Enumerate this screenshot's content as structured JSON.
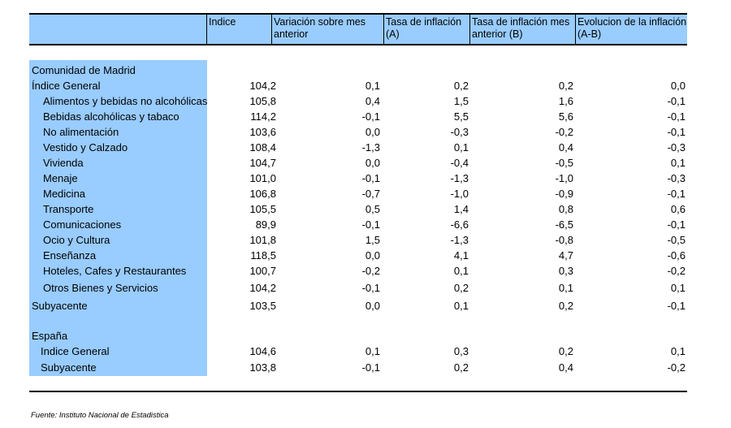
{
  "headers": [
    "Indice",
    "Variación sobre mes anterior",
    "Tasa de inflación (A)",
    "Tasa de inflación mes anterior (B)",
    "Evolucion de la inflación (A-B)"
  ],
  "sections": {
    "madrid_title": "Comunidad de Madrid",
    "spain_title": "España"
  },
  "rows": [
    {
      "label": "Índice General",
      "indent": 0,
      "values": [
        "104,2",
        "0,1",
        "0,2",
        "0,2",
        "0,0"
      ]
    },
    {
      "label": "Alimentos y bebidas no alcohólicas",
      "indent": 1,
      "values": [
        "105,8",
        "0,4",
        "1,5",
        "1,6",
        "-0,1"
      ]
    },
    {
      "label": "Bebidas alcohólicas y tabaco",
      "indent": 1,
      "values": [
        "114,2",
        "-0,1",
        "5,5",
        "5,6",
        "-0,1"
      ]
    },
    {
      "label": "No alimentación",
      "indent": 1,
      "values": [
        "103,6",
        "0,0",
        "-0,3",
        "-0,2",
        "-0,1"
      ]
    },
    {
      "label": "Vestido y Calzado",
      "indent": 1,
      "values": [
        "108,4",
        "-1,3",
        "0,1",
        "0,4",
        "-0,3"
      ]
    },
    {
      "label": "Vivienda",
      "indent": 1,
      "values": [
        "104,7",
        "0,0",
        "-0,4",
        "-0,5",
        "0,1"
      ]
    },
    {
      "label": "Menaje",
      "indent": 1,
      "values": [
        "101,0",
        "-0,1",
        "-1,3",
        "-1,0",
        "-0,3"
      ]
    },
    {
      "label": "Medicina",
      "indent": 1,
      "values": [
        "106,8",
        "-0,7",
        "-1,0",
        "-0,9",
        "-0,1"
      ]
    },
    {
      "label": "Transporte",
      "indent": 1,
      "values": [
        "105,5",
        "0,5",
        "1,4",
        "0,8",
        "0,6"
      ]
    },
    {
      "label": "Comunicaciones",
      "indent": 1,
      "values": [
        "89,9",
        "-0,1",
        "-6,6",
        "-6,5",
        "-0,1"
      ]
    },
    {
      "label": "Ocio y Cultura",
      "indent": 1,
      "values": [
        "101,8",
        "1,5",
        "-1,3",
        "-0,8",
        "-0,5"
      ]
    },
    {
      "label": "Enseñanza",
      "indent": 1,
      "values": [
        "118,5",
        "0,0",
        "4,1",
        "4,7",
        "-0,6"
      ]
    },
    {
      "label": "Hoteles, Cafes y Restaurantes",
      "indent": 1,
      "values": [
        "100,7",
        "-0,2",
        "0,1",
        "0,3",
        "-0,2"
      ]
    },
    {
      "label": "Otros Bienes y Servicios",
      "indent": 1,
      "values": [
        "104,2",
        "-0,1",
        "0,2",
        "0,1",
        "0,1"
      ]
    },
    {
      "label": "Subyacente",
      "indent": 0,
      "values": [
        "103,5",
        "0,0",
        "0,1",
        "0,2",
        "-0,1"
      ]
    }
  ],
  "spain_rows": [
    {
      "label": "Indice General",
      "values": [
        "104,6",
        "0,1",
        "0,3",
        "0,2",
        "0,1"
      ]
    },
    {
      "label": "Subyacente",
      "values": [
        "103,8",
        "-0,1",
        "0,2",
        "0,4",
        "-0,2"
      ]
    }
  ],
  "source": "Fuente: Instituto Nacional de Estadistica"
}
